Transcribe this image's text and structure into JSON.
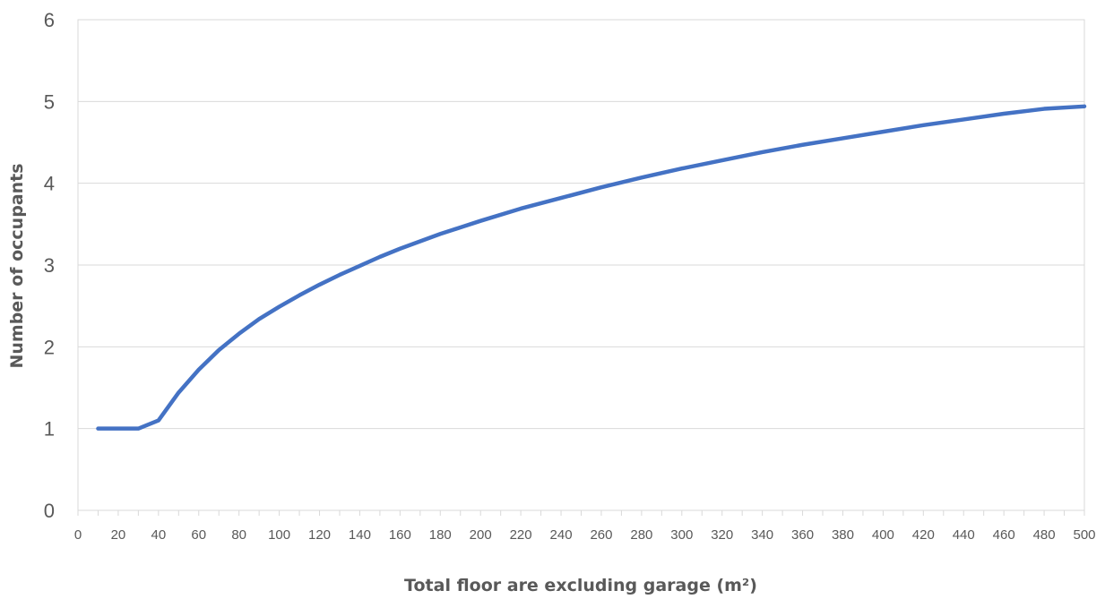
{
  "chart_data": {
    "type": "line",
    "title": "",
    "xlabel": "Total floor are excluding garage (m²)",
    "ylabel": "Number of occupants",
    "xlim": [
      0,
      500
    ],
    "ylim": [
      0,
      6
    ],
    "x_ticks": [
      0,
      20,
      40,
      60,
      80,
      100,
      120,
      140,
      160,
      180,
      200,
      220,
      240,
      260,
      280,
      300,
      320,
      340,
      360,
      380,
      400,
      420,
      440,
      460,
      480,
      500
    ],
    "y_ticks": [
      0,
      1,
      2,
      3,
      4,
      5,
      6
    ],
    "grid": "horizontal",
    "legend": "none",
    "series": [
      {
        "color": "#4472c4",
        "x": [
          10,
          20,
          30,
          40,
          50,
          60,
          70,
          80,
          90,
          100,
          110,
          120,
          130,
          140,
          150,
          160,
          170,
          180,
          190,
          200,
          220,
          240,
          260,
          280,
          300,
          320,
          340,
          360,
          380,
          400,
          420,
          440,
          460,
          480,
          500
        ],
        "y": [
          1.0,
          1.0,
          1.0,
          1.1,
          1.44,
          1.72,
          1.96,
          2.16,
          2.34,
          2.49,
          2.63,
          2.76,
          2.88,
          2.99,
          3.1,
          3.2,
          3.29,
          3.38,
          3.46,
          3.54,
          3.69,
          3.82,
          3.95,
          4.07,
          4.18,
          4.28,
          4.38,
          4.47,
          4.55,
          4.63,
          4.71,
          4.78,
          4.85,
          4.91,
          4.94
        ]
      }
    ]
  }
}
